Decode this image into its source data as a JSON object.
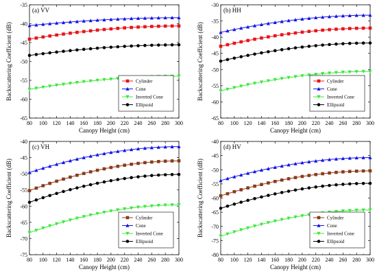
{
  "colors": {
    "Cylinder": "#e8141c",
    "Cylinder_c": "#8b3a1a",
    "Cone": "#1414e8",
    "Inverted Cone": "#3ce83c",
    "Ellipsoid": "#000000"
  },
  "chart_data": [
    {
      "type": "line",
      "title": "(a) VV",
      "xlabel": "Canopy Height (cm)",
      "ylabel": "Backscattering Coefficient (dB)",
      "xlim": [
        80,
        300
      ],
      "ylim": [
        -65,
        -35
      ],
      "x_ticks": [
        80,
        100,
        120,
        140,
        160,
        180,
        200,
        220,
        240,
        260,
        280,
        300
      ],
      "y_ticks": [
        -65,
        -60,
        -55,
        -50,
        -45,
        -40,
        -35
      ],
      "legend_position": "bottom-right",
      "series": [
        {
          "name": "Cylinder",
          "color_key": "Cylinder",
          "marker": "square",
          "start": -44.1,
          "end": -40.6
        },
        {
          "name": "Cone",
          "color_key": "Cone",
          "marker": "triangle-up",
          "start": -40.5,
          "end": -38.4
        },
        {
          "name": "Inverted Cone",
          "color_key": "Inverted Cone",
          "marker": "triangle-down",
          "start": -57.4,
          "end": -53.9
        },
        {
          "name": "Ellipsoid",
          "color_key": "Ellipsoid",
          "marker": "circle",
          "start": -48.4,
          "end": -45.6
        }
      ]
    },
    {
      "type": "line",
      "title": "(b) HH",
      "xlabel": "Canopy Height (cm)",
      "ylabel": "Backscattering Coefficient (dB)",
      "xlim": [
        80,
        300
      ],
      "ylim": [
        -65,
        -30
      ],
      "x_ticks": [
        80,
        100,
        120,
        140,
        160,
        180,
        200,
        220,
        240,
        260,
        280,
        300
      ],
      "y_ticks": [
        -65,
        -60,
        -55,
        -50,
        -45,
        -40,
        -35,
        -30
      ],
      "legend_position": "bottom-right",
      "series": [
        {
          "name": "Cylinder",
          "color_key": "Cylinder",
          "marker": "square",
          "start": -42.8,
          "end": -37.2
        },
        {
          "name": "Cone",
          "color_key": "Cone",
          "marker": "triangle-up",
          "start": -38.5,
          "end": -33.2
        },
        {
          "name": "Inverted Cone",
          "color_key": "Inverted Cone",
          "marker": "triangle-down",
          "start": -56.6,
          "end": -50.6
        },
        {
          "name": "Ellipsoid",
          "color_key": "Ellipsoid",
          "marker": "circle",
          "start": -47.4,
          "end": -41.8
        }
      ]
    },
    {
      "type": "line",
      "title": "(c) VH",
      "xlabel": "Canopy Height (cm)",
      "ylabel": "Backscattering Coefficient (dB)",
      "xlim": [
        80,
        300
      ],
      "ylim": [
        -75,
        -40
      ],
      "x_ticks": [
        80,
        100,
        120,
        140,
        160,
        180,
        200,
        220,
        240,
        260,
        280,
        300
      ],
      "y_ticks": [
        -75,
        -70,
        -65,
        -60,
        -55,
        -50,
        -45,
        -40
      ],
      "legend_position": "bottom-right",
      "series": [
        {
          "name": "Cylinder",
          "color_key": "Cylinder_c",
          "marker": "square",
          "start": -55.2,
          "end": -46.0
        },
        {
          "name": "Cone",
          "color_key": "Cone",
          "marker": "triangle-up",
          "start": -49.6,
          "end": -41.6
        },
        {
          "name": "Inverted Cone",
          "color_key": "Inverted Cone",
          "marker": "triangle-down",
          "start": -68.2,
          "end": -59.6
        },
        {
          "name": "Ellipsoid",
          "color_key": "Ellipsoid",
          "marker": "circle",
          "start": -58.8,
          "end": -50.2
        }
      ]
    },
    {
      "type": "line",
      "title": "(d) HV",
      "xlabel": "Canopy Height (cm)",
      "ylabel": "Backscattering Coefficient (dB)",
      "xlim": [
        80,
        300
      ],
      "ylim": [
        -80,
        -40
      ],
      "x_ticks": [
        80,
        100,
        120,
        140,
        160,
        180,
        200,
        220,
        240,
        260,
        280,
        300
      ],
      "y_ticks": [
        -80,
        -75,
        -70,
        -65,
        -60,
        -55,
        -50,
        -45,
        -40
      ],
      "legend_position": "bottom-right",
      "series": [
        {
          "name": "Cylinder",
          "color_key": "Cylinder_c",
          "marker": "square",
          "start": -59.2,
          "end": -50.4
        },
        {
          "name": "Cone",
          "color_key": "Cone",
          "marker": "triangle-up",
          "start": -53.8,
          "end": -45.7
        },
        {
          "name": "Inverted Cone",
          "color_key": "Inverted Cone",
          "marker": "triangle-down",
          "start": -73.5,
          "end": -64.2
        },
        {
          "name": "Ellipsoid",
          "color_key": "Ellipsoid",
          "marker": "circle",
          "start": -63.6,
          "end": -54.8
        }
      ]
    }
  ]
}
